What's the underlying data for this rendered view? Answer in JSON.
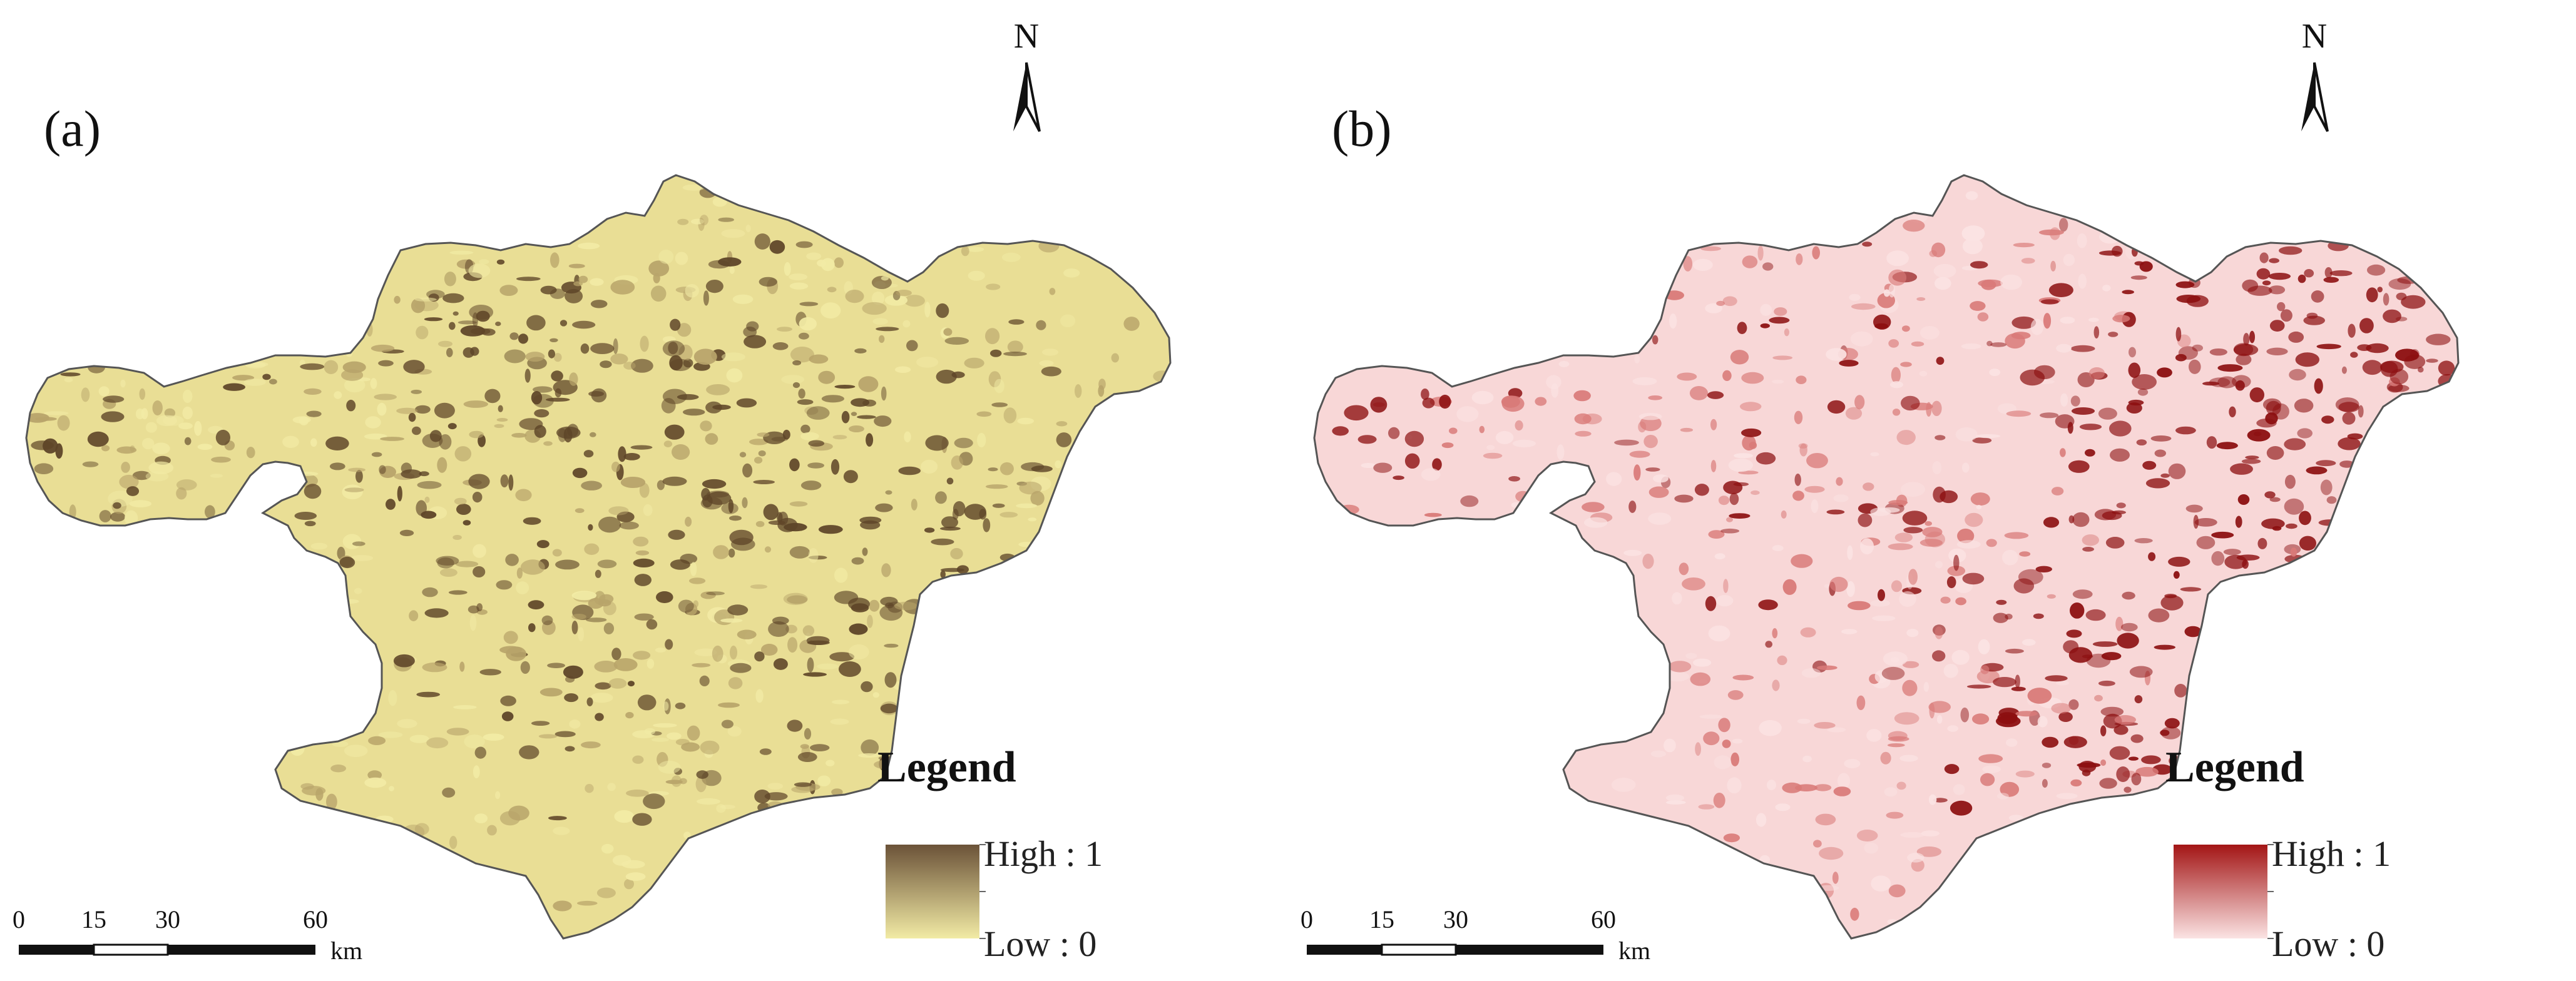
{
  "panels": [
    {
      "label": "(a)",
      "north": "N",
      "legend": {
        "title": "Legend",
        "high": "High : 1",
        "low": "Low : 0"
      },
      "ramp": {
        "high": "#6b5238",
        "low": "#f2eba5",
        "base": "#e9de95",
        "mid": "#b8a46a",
        "dark": "#5e4528"
      },
      "scale": {
        "ticks": [
          "0",
          "15",
          "30",
          "60"
        ],
        "unit": "km"
      }
    },
    {
      "label": "(b)",
      "north": "N",
      "legend": {
        "title": "Legend",
        "high": "High : 1",
        "low": "Low : 0"
      },
      "ramp": {
        "high": "#a31515",
        "low": "#fbe3e3",
        "base": "#f8d7d7",
        "mid": "#d97a78",
        "dark": "#8c0f10"
      },
      "scale": {
        "ticks": [
          "0",
          "15",
          "30",
          "60"
        ],
        "unit": "km"
      }
    }
  ]
}
